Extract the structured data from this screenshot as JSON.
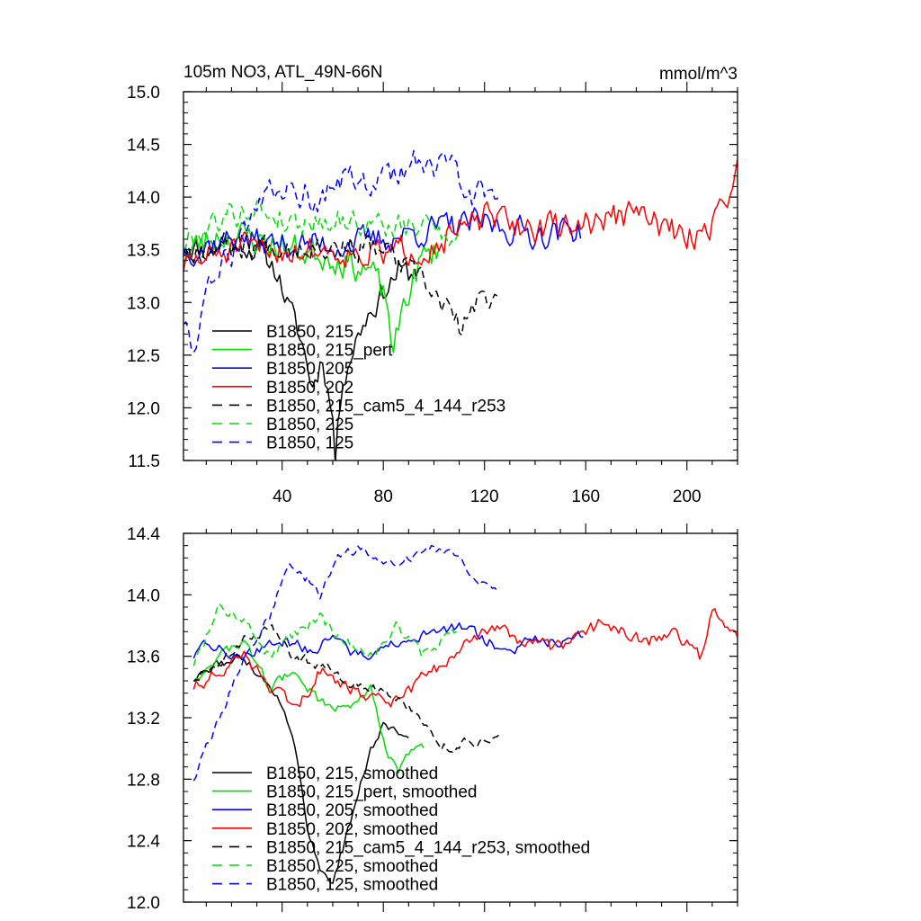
{
  "figure": {
    "title_left": "105m NO3, ATL_49N-66N",
    "title_right": "mmol/m^3"
  },
  "chart_data": [
    {
      "type": "line",
      "xlim": [
        1,
        220
      ],
      "ylim": [
        11.5,
        15.0
      ],
      "xticks": [
        40,
        80,
        120,
        160,
        200
      ],
      "yticks": [
        11.5,
        12.0,
        12.5,
        13.0,
        13.5,
        14.0,
        14.5,
        15.0
      ],
      "legend_position": "bottom-left",
      "series": [
        {
          "name": "B1850, 215",
          "color": "#000000",
          "dash": "solid",
          "length": 92,
          "x_start": 1,
          "anchors": [
            [
              1,
              13.55
            ],
            [
              10,
              13.5
            ],
            [
              20,
              13.6
            ],
            [
              30,
              13.5
            ],
            [
              38,
              13.3
            ],
            [
              42,
              13.0
            ],
            [
              48,
              12.6
            ],
            [
              52,
              12.2
            ],
            [
              56,
              12.5
            ],
            [
              60,
              11.9
            ],
            [
              61,
              11.52
            ],
            [
              64,
              12.3
            ],
            [
              70,
              12.7
            ],
            [
              74,
              12.9
            ],
            [
              80,
              13.1
            ],
            [
              86,
              13.3
            ],
            [
              92,
              13.25
            ]
          ],
          "base": 13.55,
          "amp": 0.2,
          "seed": 11
        },
        {
          "name": "B1850, 215_pert",
          "color": "#00dd00",
          "dash": "solid",
          "length": 102,
          "x_start": 1,
          "anchors": [
            [
              1,
              13.45
            ],
            [
              15,
              13.65
            ],
            [
              30,
              13.6
            ],
            [
              45,
              13.5
            ],
            [
              60,
              13.45
            ],
            [
              75,
              13.3
            ],
            [
              82,
              12.95
            ],
            [
              84,
              12.45
            ],
            [
              88,
              13.0
            ],
            [
              95,
              13.4
            ],
            [
              102,
              13.5
            ]
          ],
          "base": 13.55,
          "amp": 0.25,
          "seed": 23
        },
        {
          "name": "B1850, 205",
          "color": "#0000ff",
          "dash": "solid",
          "length": 158,
          "x_start": 1,
          "anchors": [
            [
              1,
              13.5
            ],
            [
              20,
              13.6
            ],
            [
              40,
              13.55
            ],
            [
              60,
              13.55
            ],
            [
              80,
              13.6
            ],
            [
              100,
              13.7
            ],
            [
              120,
              13.75
            ],
            [
              140,
              13.65
            ],
            [
              158,
              13.7
            ]
          ],
          "base": 13.6,
          "amp": 0.22,
          "seed": 37
        },
        {
          "name": "B1850, 202",
          "color": "#ff0000",
          "dash": "solid",
          "length": 220,
          "x_start": 1,
          "anchors": [
            [
              1,
              13.35
            ],
            [
              20,
              13.5
            ],
            [
              40,
              13.5
            ],
            [
              60,
              13.5
            ],
            [
              80,
              13.45
            ],
            [
              100,
              13.55
            ],
            [
              120,
              13.8
            ],
            [
              140,
              13.7
            ],
            [
              160,
              13.75
            ],
            [
              180,
              13.85
            ],
            [
              200,
              13.6
            ],
            [
              210,
              13.75
            ],
            [
              220,
              14.25
            ]
          ],
          "base": 13.6,
          "amp": 0.22,
          "seed": 51
        },
        {
          "name": "B1850, 215_cam5_4_144_r253",
          "color": "#000000",
          "dash": "dashed",
          "length": 126,
          "x_start": 1,
          "anchors": [
            [
              1,
              13.5
            ],
            [
              20,
              13.55
            ],
            [
              40,
              13.55
            ],
            [
              60,
              13.55
            ],
            [
              80,
              13.5
            ],
            [
              95,
              13.2
            ],
            [
              105,
              12.95
            ],
            [
              110,
              12.75
            ],
            [
              118,
              13.0
            ],
            [
              126,
              13.1
            ]
          ],
          "base": 13.5,
          "amp": 0.2,
          "seed": 67
        },
        {
          "name": "B1850, 225",
          "color": "#00dd00",
          "dash": "dashed",
          "length": 110,
          "x_start": 1,
          "anchors": [
            [
              1,
              13.55
            ],
            [
              15,
              13.8
            ],
            [
              30,
              13.9
            ],
            [
              45,
              13.75
            ],
            [
              60,
              13.8
            ],
            [
              75,
              13.75
            ],
            [
              90,
              13.7
            ],
            [
              100,
              13.75
            ],
            [
              110,
              13.6
            ]
          ],
          "base": 13.75,
          "amp": 0.2,
          "seed": 79
        },
        {
          "name": "B1850, 125",
          "color": "#0000ff",
          "dash": "dashed",
          "length": 126,
          "x_start": 1,
          "anchors": [
            [
              1,
              12.85
            ],
            [
              5,
              12.6
            ],
            [
              10,
              13.0
            ],
            [
              15,
              13.3
            ],
            [
              25,
              13.6
            ],
            [
              35,
              14.0
            ],
            [
              45,
              14.1
            ],
            [
              55,
              13.95
            ],
            [
              65,
              14.2
            ],
            [
              75,
              14.15
            ],
            [
              85,
              14.2
            ],
            [
              95,
              14.35
            ],
            [
              105,
              14.3
            ],
            [
              115,
              14.05
            ],
            [
              126,
              14.0
            ]
          ],
          "base": 14.0,
          "amp": 0.22,
          "seed": 93
        }
      ]
    },
    {
      "type": "line",
      "xlim": [
        1,
        220
      ],
      "ylim": [
        12.0,
        14.4
      ],
      "xticks": [
        40,
        80,
        120,
        160,
        200
      ],
      "yticks": [
        12.0,
        12.4,
        12.8,
        13.2,
        13.6,
        14.0,
        14.4
      ],
      "legend_position": "bottom-left",
      "series": [
        {
          "name": "B1850, 215, smoothed",
          "color": "#000000",
          "dash": "solid",
          "length": 86,
          "x_start": 5,
          "anchors": [
            [
              5,
              13.45
            ],
            [
              15,
              13.55
            ],
            [
              25,
              13.6
            ],
            [
              35,
              13.4
            ],
            [
              40,
              13.3
            ],
            [
              45,
              13.0
            ],
            [
              50,
              12.5
            ],
            [
              55,
              12.2
            ],
            [
              60,
              12.15
            ],
            [
              65,
              12.4
            ],
            [
              70,
              12.7
            ],
            [
              75,
              13.0
            ],
            [
              80,
              13.15
            ],
            [
              86,
              13.1
            ]
          ],
          "base": 13.4,
          "amp": 0.05,
          "seed": 111
        },
        {
          "name": "B1850, 215_pert, smoothed",
          "color": "#00dd00",
          "dash": "solid",
          "length": 92,
          "x_start": 5,
          "anchors": [
            [
              5,
              13.45
            ],
            [
              15,
              13.6
            ],
            [
              25,
              13.7
            ],
            [
              35,
              13.4
            ],
            [
              45,
              13.5
            ],
            [
              55,
              13.3
            ],
            [
              65,
              13.25
            ],
            [
              75,
              13.4
            ],
            [
              82,
              12.95
            ],
            [
              86,
              12.85
            ],
            [
              92,
              13.0
            ]
          ],
          "base": 13.45,
          "amp": 0.05,
          "seed": 123
        },
        {
          "name": "B1850, 205, smoothed",
          "color": "#0000ff",
          "dash": "solid",
          "length": 155,
          "x_start": 5,
          "anchors": [
            [
              5,
              13.6
            ],
            [
              10,
              13.7
            ],
            [
              20,
              13.6
            ],
            [
              30,
              13.65
            ],
            [
              40,
              13.7
            ],
            [
              50,
              13.65
            ],
            [
              60,
              13.7
            ],
            [
              70,
              13.6
            ],
            [
              80,
              13.65
            ],
            [
              90,
              13.7
            ],
            [
              100,
              13.75
            ],
            [
              110,
              13.8
            ],
            [
              120,
              13.7
            ],
            [
              130,
              13.65
            ],
            [
              140,
              13.7
            ],
            [
              150,
              13.7
            ],
            [
              155,
              13.75
            ]
          ],
          "base": 13.65,
          "amp": 0.06,
          "seed": 137
        },
        {
          "name": "B1850, 202, smoothed",
          "color": "#ff0000",
          "dash": "solid",
          "length": 217,
          "x_start": 5,
          "anchors": [
            [
              5,
              13.4
            ],
            [
              15,
              13.5
            ],
            [
              25,
              13.6
            ],
            [
              35,
              13.4
            ],
            [
              45,
              13.25
            ],
            [
              55,
              13.5
            ],
            [
              65,
              13.4
            ],
            [
              75,
              13.35
            ],
            [
              85,
              13.3
            ],
            [
              95,
              13.45
            ],
            [
              105,
              13.55
            ],
            [
              115,
              13.7
            ],
            [
              125,
              13.8
            ],
            [
              135,
              13.7
            ],
            [
              145,
              13.65
            ],
            [
              155,
              13.7
            ],
            [
              165,
              13.8
            ],
            [
              175,
              13.75
            ],
            [
              185,
              13.7
            ],
            [
              195,
              13.75
            ],
            [
              205,
              13.6
            ],
            [
              210,
              13.9
            ],
            [
              217,
              13.75
            ]
          ],
          "base": 13.6,
          "amp": 0.07,
          "seed": 151
        },
        {
          "name": "B1850, 215_cam5_4_144_r253, smoothed",
          "color": "#000000",
          "dash": "dashed",
          "length": 122,
          "x_start": 5,
          "anchors": [
            [
              5,
              13.45
            ],
            [
              15,
              13.55
            ],
            [
              25,
              13.7
            ],
            [
              35,
              13.8
            ],
            [
              45,
              13.6
            ],
            [
              55,
              13.55
            ],
            [
              65,
              13.45
            ],
            [
              75,
              13.4
            ],
            [
              85,
              13.35
            ],
            [
              95,
              13.2
            ],
            [
              105,
              13.0
            ],
            [
              115,
              13.05
            ],
            [
              122,
              13.05
            ]
          ],
          "base": 13.4,
          "amp": 0.06,
          "seed": 167
        },
        {
          "name": "B1850, 225, smoothed",
          "color": "#00dd00",
          "dash": "dashed",
          "length": 106,
          "x_start": 5,
          "anchors": [
            [
              5,
              13.55
            ],
            [
              15,
              13.9
            ],
            [
              25,
              13.85
            ],
            [
              35,
              13.6
            ],
            [
              45,
              13.75
            ],
            [
              55,
              13.85
            ],
            [
              65,
              13.7
            ],
            [
              75,
              13.6
            ],
            [
              85,
              13.8
            ],
            [
              95,
              13.6
            ],
            [
              106,
              13.75
            ]
          ],
          "base": 13.75,
          "amp": 0.06,
          "seed": 181
        },
        {
          "name": "B1850, 125, smoothed",
          "color": "#0000ff",
          "dash": "dashed",
          "length": 122,
          "x_start": 5,
          "anchors": [
            [
              5,
              12.8
            ],
            [
              10,
              13.0
            ],
            [
              18,
              13.3
            ],
            [
              25,
              13.6
            ],
            [
              35,
              13.85
            ],
            [
              42,
              14.2
            ],
            [
              50,
              14.1
            ],
            [
              55,
              14.0
            ],
            [
              62,
              14.25
            ],
            [
              70,
              14.3
            ],
            [
              80,
              14.2
            ],
            [
              90,
              14.25
            ],
            [
              100,
              14.3
            ],
            [
              108,
              14.28
            ],
            [
              115,
              14.15
            ],
            [
              122,
              14.05
            ]
          ],
          "base": 14.0,
          "amp": 0.05,
          "seed": 197
        }
      ]
    }
  ]
}
